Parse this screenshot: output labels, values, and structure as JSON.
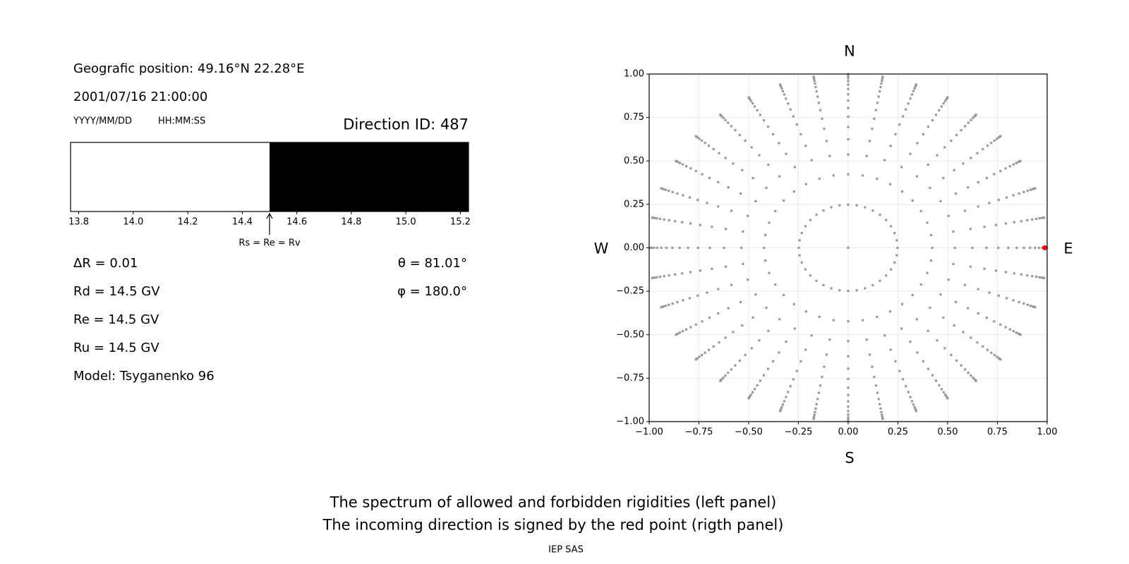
{
  "left_panel": {
    "position": "Geografic position: 49.16°N 22.28°E",
    "datetime": "2001/07/16 21:00:00",
    "date_format": "YYYY/MM/DD",
    "time_format": "HH:MM:SS",
    "direction_id": "Direction ID: 487",
    "delta_r": "ΔR = 0.01",
    "rd": "Rd = 14.5 GV",
    "re": "Re = 14.5 GV",
    "ru": "Ru = 14.5 GV",
    "model": "Model: Tsyganenko 96",
    "theta": "θ = 81.01°",
    "phi": "φ = 180.0°"
  },
  "right_panel": {
    "north": "N",
    "south": "S",
    "west": "W",
    "east": "E"
  },
  "footer": {
    "line1": "The spectrum of allowed and forbidden rigidities (left panel)",
    "line2": "The incoming direction is signed by the red point (rigth panel)",
    "credit": "IEP SAS"
  },
  "chart_data": [
    {
      "type": "bar",
      "xlim": [
        13.77,
        15.23
      ],
      "xticks": [
        "13.8",
        "14.0",
        "14.2",
        "14.4",
        "14.6",
        "14.8",
        "15.0",
        "15.2"
      ],
      "segments": [
        {
          "from": 13.77,
          "to": 14.5,
          "color": "#ffffff"
        },
        {
          "from": 14.5,
          "to": 15.23,
          "color": "#000000"
        }
      ],
      "annotation": {
        "x": 14.5,
        "text": "Rs = Re = Rv"
      }
    },
    {
      "type": "scatter",
      "xlim": [
        -1,
        1
      ],
      "ylim": [
        -1,
        1
      ],
      "xticks": [
        "−1.00",
        "−0.75",
        "−0.50",
        "−0.25",
        "0.00",
        "0.25",
        "0.50",
        "0.75",
        "1.00"
      ],
      "yticks": [
        "1.00",
        "0.75",
        "0.50",
        "0.25",
        "0.00",
        "−0.25",
        "−0.50",
        "−0.75",
        "−1.00"
      ],
      "grid": true,
      "point_color": "#999999",
      "highlight_color": "#ff0000",
      "directions": {
        "center_point": true,
        "cos_zenith": [
          0.96875,
          0.90625,
          0.84375,
          0.78125,
          0.71875,
          0.65625,
          0.59375,
          0.53125,
          0.46875,
          0.40625,
          0.34375,
          0.28125,
          0.21875,
          0.15625,
          0.09375,
          0.03125
        ],
        "azimuth_step_deg": 10
      },
      "highlight": {
        "x": 0.988,
        "y": 0.0
      }
    }
  ]
}
